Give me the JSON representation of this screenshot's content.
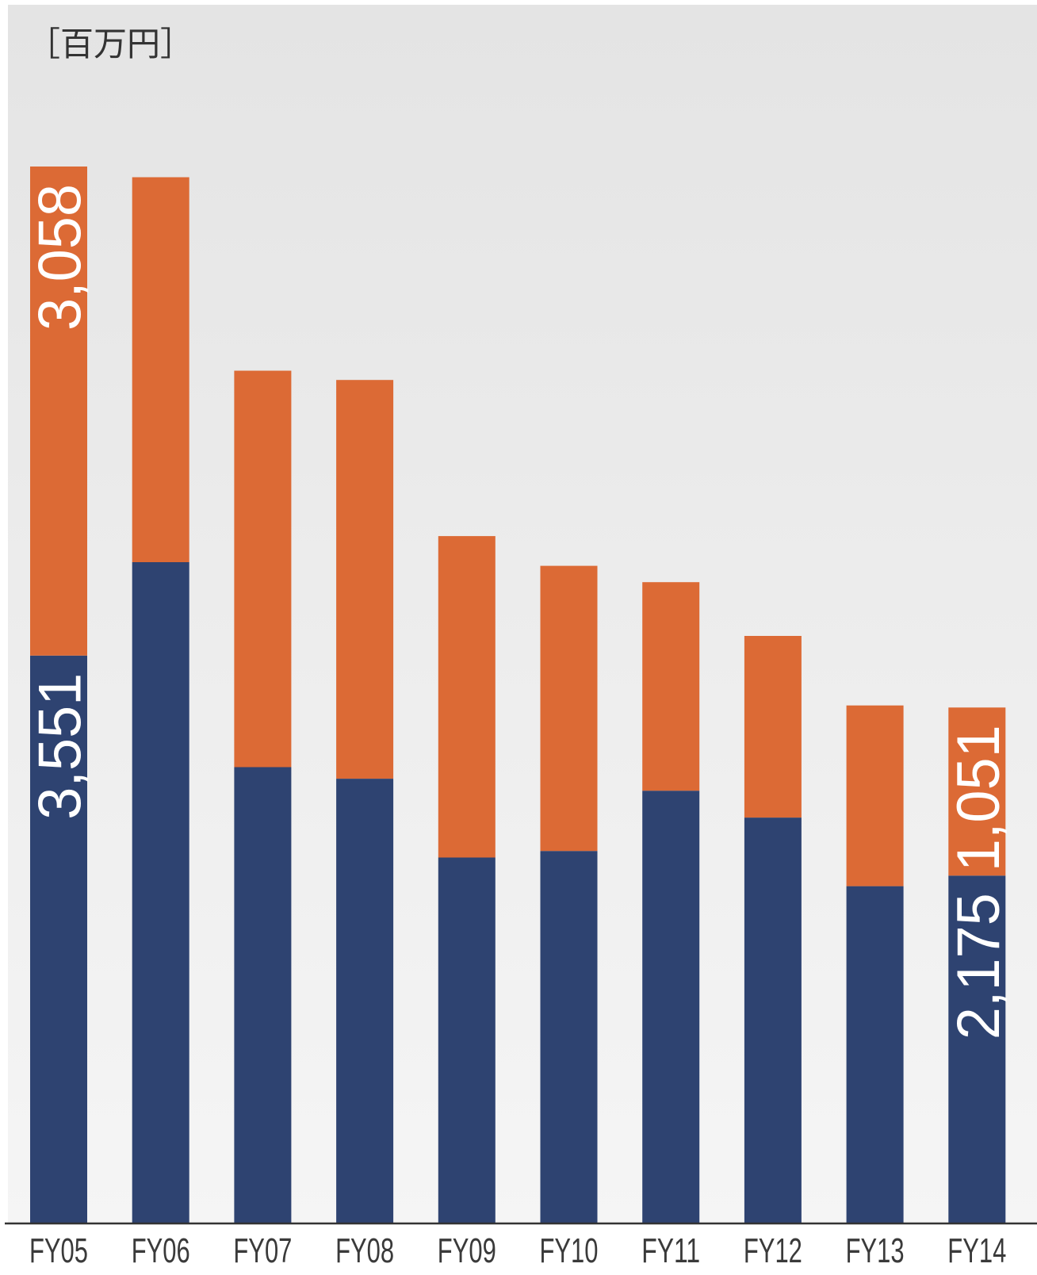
{
  "chart_data": {
    "type": "bar",
    "stacked": true,
    "unit_label": "［百万円］",
    "categories": [
      "FY05",
      "FY06",
      "FY07",
      "FY08",
      "FY09",
      "FY10",
      "FY11",
      "FY12",
      "FY13",
      "FY14"
    ],
    "series": [
      {
        "color": "#2e4371",
        "values": [
          3551,
          4135,
          2853,
          2781,
          2288,
          2329,
          2706,
          2538,
          2109,
          2175
        ]
      },
      {
        "color": "#dc6a35",
        "values": [
          3058,
          2407,
          2479,
          2493,
          2010,
          1783,
          1304,
          1136,
          1130,
          1051
        ]
      }
    ],
    "data_labels": [
      {
        "category": "FY05",
        "series": 0,
        "text": "3,551"
      },
      {
        "category": "FY05",
        "series": 1,
        "text": "3,058"
      },
      {
        "category": "FY14",
        "series": 0,
        "text": "2,175"
      },
      {
        "category": "FY14",
        "series": 1,
        "text": "1,051"
      }
    ],
    "ylim": [
      0,
      7500
    ],
    "grid": false,
    "legend": "none",
    "background_gradient": [
      "#e4e4e4",
      "#f5f5f5"
    ]
  }
}
